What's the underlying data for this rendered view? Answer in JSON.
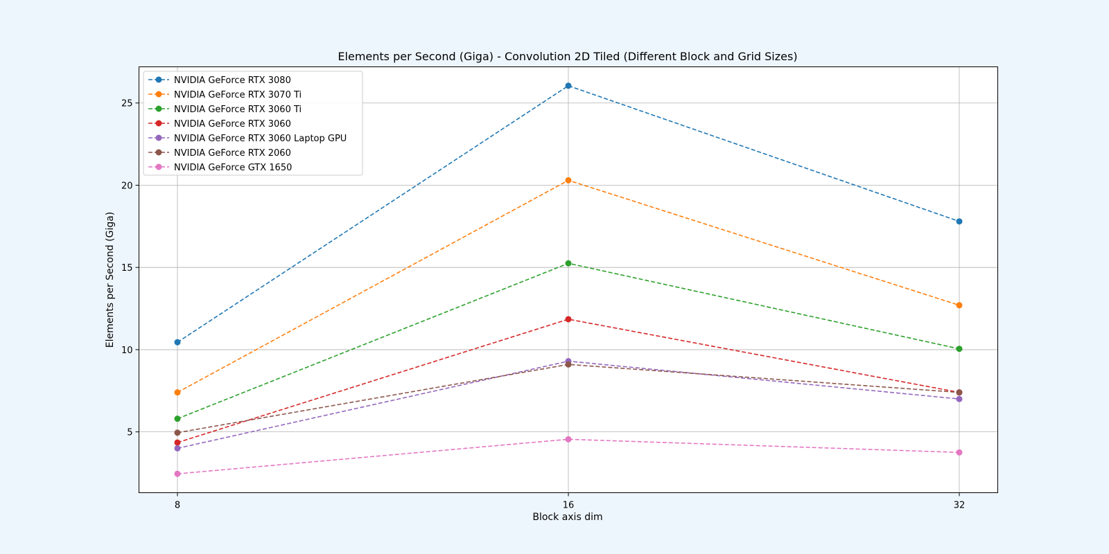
{
  "chart_data": {
    "type": "line",
    "title": "Elements per Second (Giga) - Convolution 2D Tiled (Different Block and Grid Sizes)",
    "xlabel": "Block axis dim",
    "ylabel": "Elements per Second (Giga)",
    "x": [
      "8",
      "16",
      "32"
    ],
    "x_tick_labels": [
      "8",
      "16",
      "32"
    ],
    "y_ticks": [
      5,
      10,
      15,
      20,
      25
    ],
    "ylim": [
      1.3,
      27.2
    ],
    "grid": true,
    "line_style": "dashed",
    "marker": "circle",
    "legend_placement": "top-left",
    "series": [
      {
        "name": "NVIDIA GeForce RTX 3080",
        "color": "#1f77b4",
        "values": [
          10.45,
          26.05,
          17.8
        ]
      },
      {
        "name": "NVIDIA GeForce RTX 3070 Ti",
        "color": "#ff7f0e",
        "values": [
          7.4,
          20.3,
          12.7
        ]
      },
      {
        "name": "NVIDIA GeForce RTX 3060 Ti",
        "color": "#2ca02c",
        "values": [
          5.8,
          15.25,
          10.05
        ]
      },
      {
        "name": "NVIDIA GeForce RTX 3060",
        "color": "#d62728",
        "values": [
          4.35,
          11.85,
          7.4
        ]
      },
      {
        "name": "NVIDIA GeForce RTX 3060 Laptop GPU",
        "color": "#9467bd",
        "values": [
          4.0,
          9.3,
          7.0
        ]
      },
      {
        "name": "NVIDIA GeForce RTX 2060",
        "color": "#8c564b",
        "values": [
          4.95,
          9.1,
          7.4
        ]
      },
      {
        "name": "NVIDIA GeForce GTX 1650",
        "color": "#e377c2",
        "values": [
          2.45,
          4.55,
          3.75
        ]
      }
    ]
  }
}
